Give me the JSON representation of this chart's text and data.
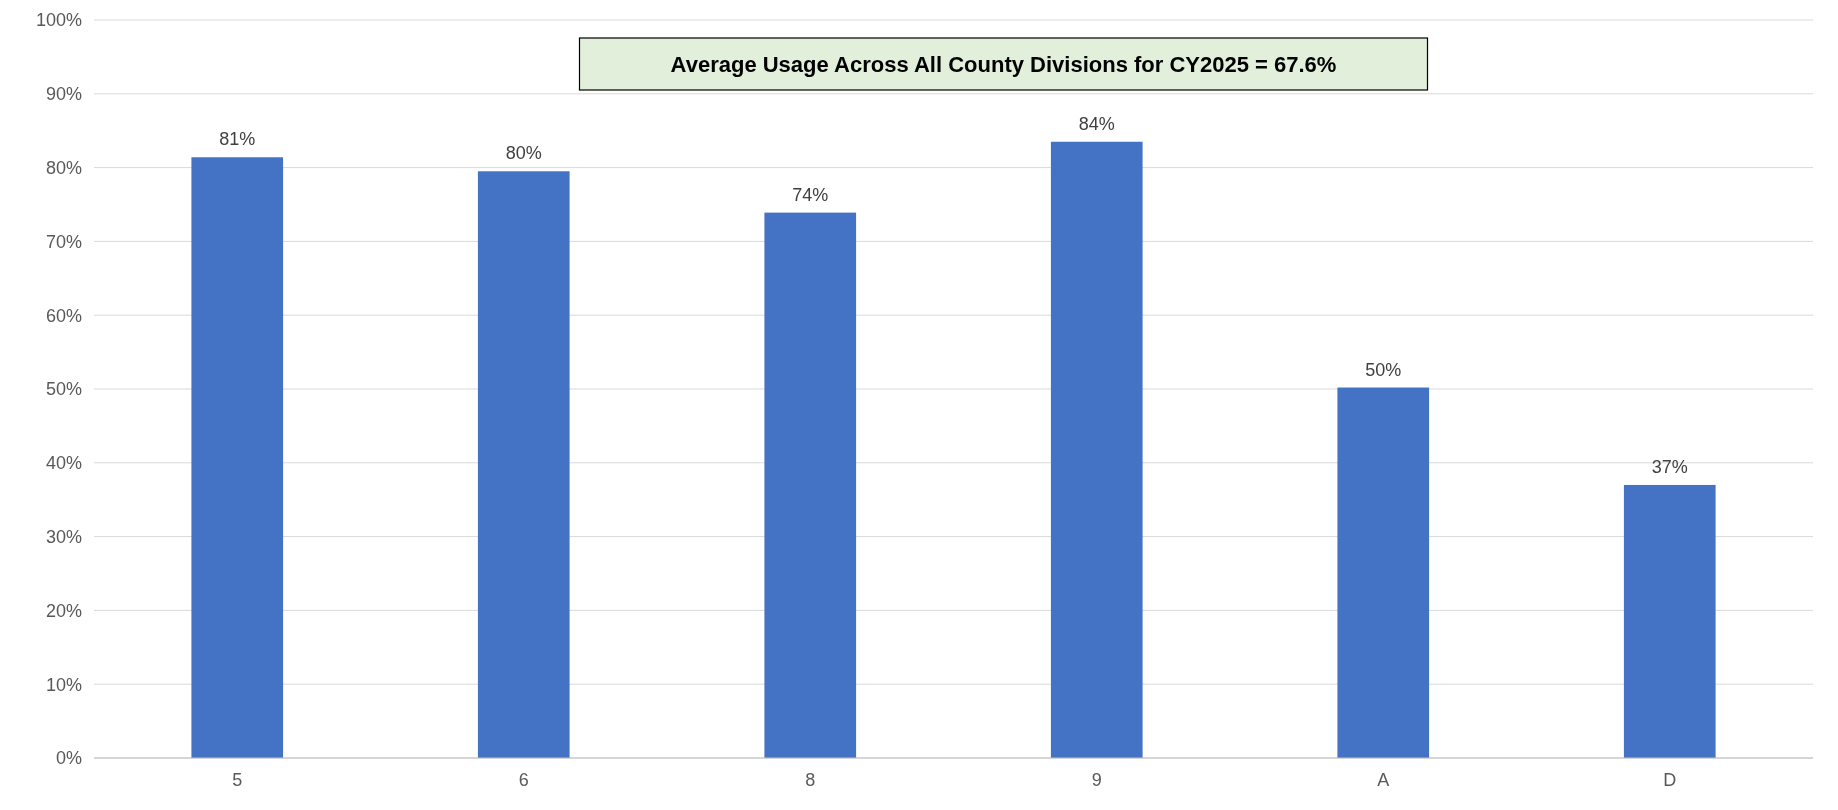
{
  "chart_data": {
    "type": "bar",
    "categories": [
      "5",
      "6",
      "8",
      "9",
      "A",
      "D"
    ],
    "values": [
      81.4,
      79.5,
      73.9,
      83.5,
      50.2,
      37.0
    ],
    "value_labels": [
      "81%",
      "80%",
      "74%",
      "84%",
      "50%",
      "37%"
    ],
    "color": "#4472c4",
    "ylim": [
      0,
      100
    ],
    "yticks": [
      {
        "value": 0,
        "label": "0%"
      },
      {
        "value": 10,
        "label": "10%"
      },
      {
        "value": 20,
        "label": "20%"
      },
      {
        "value": 30,
        "label": "30%"
      },
      {
        "value": 40,
        "label": "40%"
      },
      {
        "value": 50,
        "label": "50%"
      },
      {
        "value": 60,
        "label": "60%"
      },
      {
        "value": 70,
        "label": "70%"
      },
      {
        "value": 80,
        "label": "80%"
      },
      {
        "value": 90,
        "label": "90%"
      },
      {
        "value": 100,
        "label": "100%"
      }
    ],
    "grid": "y",
    "annotations": [
      "Average Usage Across All County Divisions for CY2025 = 67.6%"
    ]
  }
}
